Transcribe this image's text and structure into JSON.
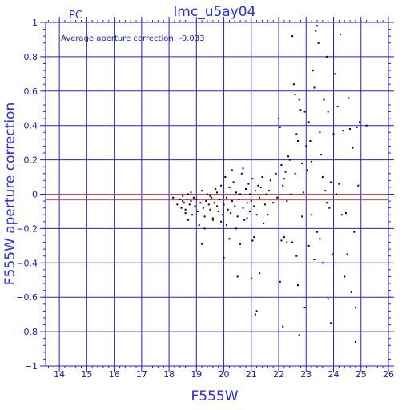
{
  "chart_data": {
    "type": "scatter",
    "title": "lmc_u5ay04",
    "corner_label": "PC",
    "annotation": "Average aperture correction: -0.033",
    "xlabel": "F555W",
    "ylabel": "F555W aperture correction",
    "xlim": [
      13.5,
      26
    ],
    "ylim": [
      -1,
      1
    ],
    "x_major_ticks": [
      14,
      15,
      16,
      17,
      18,
      19,
      20,
      21,
      22,
      23,
      24,
      25,
      26
    ],
    "y_major_ticks": [
      -1,
      -0.8,
      -0.6,
      -0.4,
      -0.2,
      0,
      0.2,
      0.4,
      0.6,
      0.8,
      1
    ],
    "x_tick_labels": [
      "14",
      "15",
      "16",
      "17",
      "18",
      "19",
      "20",
      "21",
      "22",
      "23",
      "24",
      "25",
      "26"
    ],
    "y_tick_labels": [
      "−1",
      "−0.8",
      "−0.6",
      "−0.4",
      "−0.2",
      "0",
      "0.2",
      "0.4",
      "0.6",
      "0.8",
      "1"
    ],
    "grid": true,
    "reference_lines": [
      {
        "y": 0,
        "color": "#d04040"
      },
      {
        "y": -0.033,
        "color": "#d04040"
      }
    ],
    "colors": {
      "axes": "#2323c8",
      "grid": "#2323c8",
      "points": "#000000",
      "title": "#2d2dd8"
    },
    "points": [
      [
        18.15,
        -0.02
      ],
      [
        18.3,
        -0.06
      ],
      [
        18.4,
        -0.03
      ],
      [
        18.45,
        -0.08
      ],
      [
        18.5,
        -0.01
      ],
      [
        18.55,
        -0.05
      ],
      [
        18.6,
        -0.09
      ],
      [
        18.65,
        -0.03
      ],
      [
        18.7,
        0.0
      ],
      [
        18.75,
        -0.06
      ],
      [
        18.8,
        -0.04
      ],
      [
        18.85,
        -0.12
      ],
      [
        18.9,
        -0.02
      ],
      [
        18.95,
        -0.07
      ],
      [
        18.6,
        -0.11
      ],
      [
        18.7,
        -0.15
      ],
      [
        18.8,
        0.01
      ],
      [
        18.5,
        -0.04
      ],
      [
        19.0,
        -0.03
      ],
      [
        19.05,
        -0.1
      ],
      [
        19.1,
        -0.18
      ],
      [
        19.15,
        -0.05
      ],
      [
        19.2,
        0.02
      ],
      [
        19.25,
        -0.08
      ],
      [
        19.3,
        -0.13
      ],
      [
        19.35,
        -0.04
      ],
      [
        19.4,
        0.0
      ],
      [
        19.45,
        -0.06
      ],
      [
        19.5,
        -0.09
      ],
      [
        19.55,
        -0.02
      ],
      [
        19.6,
        -0.14
      ],
      [
        19.65,
        -0.05
      ],
      [
        19.7,
        0.03
      ],
      [
        19.75,
        -0.07
      ],
      [
        19.8,
        -0.1
      ],
      [
        19.85,
        -0.03
      ],
      [
        19.9,
        0.05
      ],
      [
        19.95,
        -0.12
      ],
      [
        19.2,
        -0.29
      ],
      [
        19.3,
        -0.2
      ],
      [
        19.6,
        -0.15
      ],
      [
        19.5,
        -0.01
      ],
      [
        19.75,
        0.01
      ],
      [
        19.9,
        -0.16
      ],
      [
        20.0,
        -0.06
      ],
      [
        20.05,
        0.1
      ],
      [
        20.1,
        -0.02
      ],
      [
        20.15,
        -0.09
      ],
      [
        20.2,
        0.04
      ],
      [
        20.25,
        -0.11
      ],
      [
        20.3,
        -0.04
      ],
      [
        20.35,
        0.07
      ],
      [
        20.4,
        -0.07
      ],
      [
        20.45,
        0.01
      ],
      [
        20.5,
        -0.13
      ],
      [
        20.55,
        -0.03
      ],
      [
        20.6,
        0.0
      ],
      [
        20.65,
        0.12
      ],
      [
        20.7,
        -0.08
      ],
      [
        20.75,
        -0.15
      ],
      [
        20.8,
        0.03
      ],
      [
        20.85,
        -0.05
      ],
      [
        20.9,
        0.06
      ],
      [
        20.95,
        -0.1
      ],
      [
        20.1,
        -0.18
      ],
      [
        20.2,
        -0.26
      ],
      [
        20.0,
        -0.37
      ],
      [
        20.45,
        -0.2
      ],
      [
        20.6,
        -0.29
      ],
      [
        20.5,
        -0.48
      ],
      [
        20.3,
        0.14
      ],
      [
        20.7,
        0.15
      ],
      [
        20.85,
        -0.14
      ],
      [
        20.95,
        0.0
      ],
      [
        21.0,
        -0.04
      ],
      [
        21.05,
        0.09
      ],
      [
        21.1,
        -0.07
      ],
      [
        21.15,
        0.02
      ],
      [
        21.2,
        -0.12
      ],
      [
        21.25,
        0.05
      ],
      [
        21.3,
        -0.02
      ],
      [
        21.4,
        0.1
      ],
      [
        21.5,
        -0.06
      ],
      [
        21.55,
        0.0
      ],
      [
        21.1,
        -0.25
      ],
      [
        21.05,
        -0.27
      ],
      [
        21.2,
        -0.68
      ],
      [
        21.15,
        -0.7
      ],
      [
        21.0,
        -0.49
      ],
      [
        21.3,
        -0.46
      ],
      [
        21.45,
        -0.17
      ],
      [
        21.35,
        0.04
      ],
      [
        21.6,
        -0.12
      ],
      [
        21.65,
        0.02
      ],
      [
        21.7,
        0.08
      ],
      [
        21.8,
        -0.05
      ],
      [
        21.9,
        0.12
      ],
      [
        21.95,
        -0.02
      ],
      [
        22.0,
        0.44
      ],
      [
        22.05,
        0.39
      ],
      [
        22.1,
        -0.27
      ],
      [
        22.15,
        0.05
      ],
      [
        22.2,
        -0.25
      ],
      [
        22.25,
        0.13
      ],
      [
        22.3,
        -0.04
      ],
      [
        22.05,
        -0.51
      ],
      [
        22.15,
        -0.77
      ],
      [
        22.1,
        0.17
      ],
      [
        22.2,
        0.09
      ],
      [
        22.3,
        -0.28
      ],
      [
        22.35,
        0.22
      ],
      [
        22.4,
        0.2
      ],
      [
        22.45,
        0.0
      ],
      [
        22.5,
        0.92
      ],
      [
        22.55,
        0.64
      ],
      [
        22.6,
        0.58
      ],
      [
        22.65,
        0.35
      ],
      [
        22.7,
        0.31
      ],
      [
        22.75,
        0.55
      ],
      [
        22.8,
        0.49
      ],
      [
        22.85,
        0.18
      ],
      [
        22.9,
        0.01
      ],
      [
        22.95,
        0.48
      ],
      [
        22.5,
        -0.28
      ],
      [
        22.65,
        -0.36
      ],
      [
        22.7,
        -0.53
      ],
      [
        22.75,
        -0.82
      ],
      [
        22.95,
        -0.66
      ],
      [
        22.85,
        -0.13
      ],
      [
        22.6,
        0.12
      ],
      [
        23.0,
        0.28
      ],
      [
        23.05,
        0.14
      ],
      [
        23.1,
        0.42
      ],
      [
        23.15,
        0.31
      ],
      [
        23.2,
        0.19
      ],
      [
        23.25,
        0.72
      ],
      [
        23.3,
        0.62
      ],
      [
        23.35,
        0.95
      ],
      [
        23.4,
        0.98
      ],
      [
        23.45,
        0.88
      ],
      [
        23.5,
        0.36
      ],
      [
        23.55,
        0.23
      ],
      [
        23.6,
        0.1
      ],
      [
        23.65,
        0.55
      ],
      [
        23.7,
        0.02
      ],
      [
        23.75,
        0.8
      ],
      [
        23.8,
        0.48
      ],
      [
        23.85,
        -0.08
      ],
      [
        23.9,
        0.07
      ],
      [
        23.95,
        -0.35
      ],
      [
        23.1,
        -0.3
      ],
      [
        23.3,
        -0.38
      ],
      [
        23.4,
        -0.22
      ],
      [
        23.6,
        -0.4
      ],
      [
        23.8,
        -0.61
      ],
      [
        23.9,
        -0.75
      ],
      [
        23.5,
        -0.26
      ],
      [
        23.75,
        -0.05
      ],
      [
        23.2,
        -0.12
      ],
      [
        24.0,
        0.35
      ],
      [
        24.05,
        0.7
      ],
      [
        24.1,
        0.0
      ],
      [
        24.15,
        0.51
      ],
      [
        24.2,
        0.06
      ],
      [
        24.25,
        0.93
      ],
      [
        24.3,
        -0.12
      ],
      [
        24.35,
        0.37
      ],
      [
        24.4,
        -0.48
      ],
      [
        24.45,
        -0.11
      ],
      [
        24.55,
        0.56
      ],
      [
        24.6,
        0.38
      ],
      [
        24.7,
        0.27
      ],
      [
        24.75,
        -0.22
      ],
      [
        24.8,
        -0.66
      ],
      [
        24.65,
        -0.57
      ],
      [
        24.5,
        -0.35
      ],
      [
        24.85,
        0.39
      ],
      [
        24.9,
        0.05
      ],
      [
        24.95,
        0.42
      ],
      [
        24.8,
        -0.86
      ],
      [
        25.2,
        0.4
      ]
    ]
  }
}
